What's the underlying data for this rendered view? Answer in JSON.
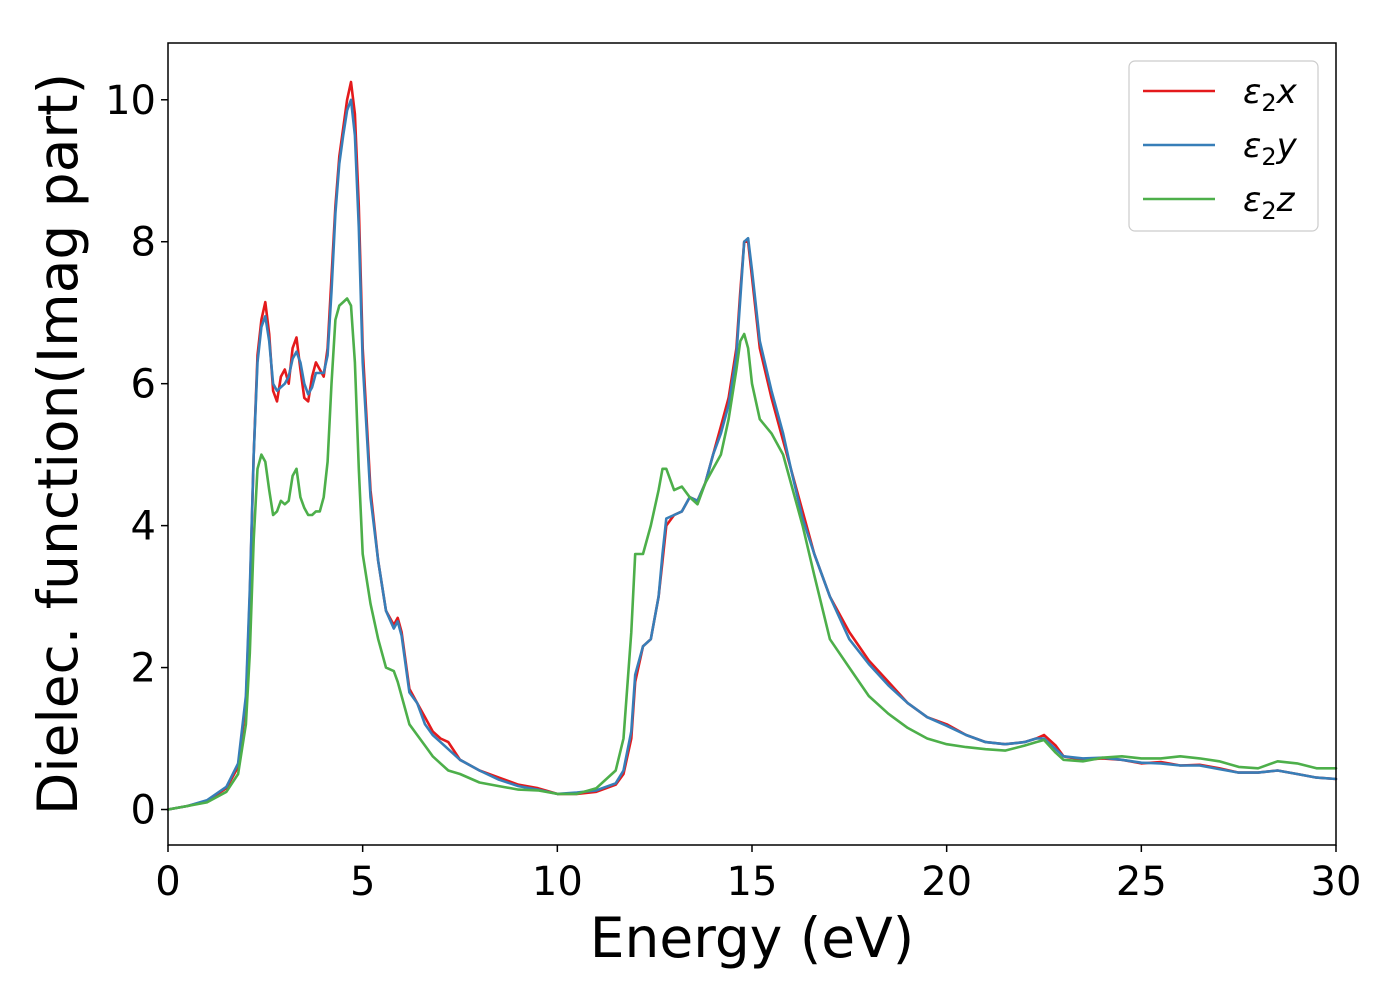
{
  "chart_data": {
    "type": "line",
    "xlabel": "Energy (eV)",
    "ylabel": "Dielec. function(Imag part)",
    "xlim": [
      0,
      30
    ],
    "ylim": [
      -0.5,
      10.8
    ],
    "xticks": [
      0,
      5,
      10,
      15,
      20,
      25,
      30
    ],
    "yticks": [
      0,
      2,
      4,
      6,
      8,
      10
    ],
    "grid": false,
    "legend_position": "top-right",
    "series": [
      {
        "name": "ε2x",
        "legend": {
          "base": "ε",
          "sub": "2",
          "var": "x"
        },
        "color": "#e41a1c",
        "x": [
          0,
          0.5,
          1.0,
          1.5,
          1.8,
          2.0,
          2.1,
          2.2,
          2.3,
          2.4,
          2.5,
          2.6,
          2.7,
          2.8,
          2.9,
          3.0,
          3.1,
          3.2,
          3.3,
          3.4,
          3.5,
          3.6,
          3.7,
          3.8,
          3.9,
          4.0,
          4.1,
          4.2,
          4.3,
          4.4,
          4.5,
          4.6,
          4.7,
          4.8,
          4.9,
          5.0,
          5.2,
          5.4,
          5.6,
          5.8,
          5.9,
          6.0,
          6.2,
          6.4,
          6.6,
          6.8,
          7.0,
          7.2,
          7.5,
          8.0,
          8.5,
          9.0,
          9.5,
          10.0,
          10.5,
          11.0,
          11.5,
          11.7,
          11.9,
          12.0,
          12.2,
          12.4,
          12.6,
          12.7,
          12.8,
          13.0,
          13.2,
          13.4,
          13.6,
          13.8,
          14.0,
          14.2,
          14.4,
          14.6,
          14.7,
          14.8,
          14.9,
          15.0,
          15.2,
          15.5,
          15.8,
          16.0,
          16.3,
          16.6,
          17.0,
          17.5,
          18.0,
          18.5,
          19.0,
          19.5,
          20.0,
          20.5,
          21.0,
          21.5,
          22.0,
          22.3,
          22.5,
          22.8,
          23.0,
          23.5,
          24.0,
          24.5,
          25.0,
          25.5,
          26.0,
          26.5,
          27.0,
          27.5,
          28.0,
          28.5,
          29.0,
          29.5,
          30.0
        ],
        "y": [
          0.0,
          0.05,
          0.12,
          0.3,
          0.6,
          1.5,
          3.0,
          5.0,
          6.4,
          6.9,
          7.15,
          6.7,
          5.9,
          5.75,
          6.1,
          6.2,
          6.0,
          6.5,
          6.65,
          6.2,
          5.8,
          5.75,
          6.1,
          6.3,
          6.2,
          6.1,
          6.5,
          7.5,
          8.5,
          9.2,
          9.6,
          10.0,
          10.25,
          9.8,
          8.5,
          6.5,
          4.5,
          3.5,
          2.8,
          2.6,
          2.7,
          2.5,
          1.7,
          1.5,
          1.3,
          1.1,
          1.0,
          0.95,
          0.7,
          0.55,
          0.45,
          0.35,
          0.3,
          0.22,
          0.22,
          0.25,
          0.35,
          0.5,
          1.0,
          1.8,
          2.3,
          2.4,
          3.0,
          3.5,
          4.0,
          4.15,
          4.2,
          4.4,
          4.35,
          4.6,
          5.0,
          5.4,
          5.8,
          6.5,
          7.3,
          8.0,
          8.0,
          7.5,
          6.5,
          5.8,
          5.2,
          4.8,
          4.2,
          3.6,
          3.0,
          2.5,
          2.1,
          1.8,
          1.5,
          1.3,
          1.2,
          1.05,
          0.95,
          0.92,
          0.95,
          1.0,
          1.05,
          0.9,
          0.75,
          0.7,
          0.72,
          0.7,
          0.65,
          0.67,
          0.62,
          0.63,
          0.58,
          0.52,
          0.52,
          0.55,
          0.5,
          0.45,
          0.43
        ]
      },
      {
        "name": "ε2y",
        "legend": {
          "base": "ε",
          "sub": "2",
          "var": "y"
        },
        "color": "#377eb8",
        "x": [
          0,
          0.5,
          1.0,
          1.5,
          1.8,
          2.0,
          2.1,
          2.2,
          2.3,
          2.4,
          2.5,
          2.6,
          2.7,
          2.8,
          2.9,
          3.0,
          3.1,
          3.2,
          3.3,
          3.4,
          3.5,
          3.6,
          3.7,
          3.8,
          3.9,
          4.0,
          4.1,
          4.2,
          4.3,
          4.4,
          4.5,
          4.6,
          4.7,
          4.8,
          4.9,
          5.0,
          5.2,
          5.4,
          5.6,
          5.8,
          5.9,
          6.0,
          6.2,
          6.4,
          6.6,
          6.8,
          7.0,
          7.2,
          7.5,
          8.0,
          8.5,
          9.0,
          9.5,
          10.0,
          10.5,
          11.0,
          11.5,
          11.7,
          11.9,
          12.0,
          12.2,
          12.4,
          12.6,
          12.7,
          12.8,
          13.0,
          13.2,
          13.4,
          13.6,
          13.8,
          14.0,
          14.2,
          14.4,
          14.6,
          14.7,
          14.8,
          14.9,
          15.0,
          15.2,
          15.5,
          15.8,
          16.0,
          16.3,
          16.6,
          17.0,
          17.5,
          18.0,
          18.5,
          19.0,
          19.5,
          20.0,
          20.5,
          21.0,
          21.5,
          22.0,
          22.3,
          22.5,
          22.8,
          23.0,
          23.5,
          24.0,
          24.5,
          25.0,
          25.5,
          26.0,
          26.5,
          27.0,
          27.5,
          28.0,
          28.5,
          29.0,
          29.5,
          30.0
        ],
        "y": [
          0.0,
          0.05,
          0.13,
          0.32,
          0.65,
          1.6,
          3.1,
          5.0,
          6.3,
          6.8,
          6.95,
          6.6,
          6.0,
          5.9,
          5.95,
          6.0,
          6.1,
          6.35,
          6.45,
          6.3,
          6.0,
          5.85,
          5.95,
          6.15,
          6.15,
          6.15,
          6.4,
          7.3,
          8.4,
          9.1,
          9.5,
          9.85,
          10.0,
          9.5,
          8.2,
          6.3,
          4.4,
          3.5,
          2.8,
          2.55,
          2.65,
          2.45,
          1.65,
          1.5,
          1.2,
          1.05,
          0.95,
          0.85,
          0.7,
          0.55,
          0.42,
          0.33,
          0.28,
          0.22,
          0.24,
          0.27,
          0.37,
          0.55,
          1.1,
          1.9,
          2.3,
          2.4,
          3.0,
          3.6,
          4.1,
          4.15,
          4.2,
          4.4,
          4.35,
          4.6,
          5.0,
          5.3,
          5.7,
          6.4,
          7.2,
          8.0,
          8.05,
          7.6,
          6.6,
          5.9,
          5.3,
          4.8,
          4.1,
          3.6,
          3.0,
          2.4,
          2.05,
          1.75,
          1.5,
          1.3,
          1.18,
          1.05,
          0.95,
          0.92,
          0.95,
          1.0,
          1.0,
          0.85,
          0.75,
          0.72,
          0.73,
          0.7,
          0.66,
          0.65,
          0.62,
          0.62,
          0.57,
          0.52,
          0.52,
          0.55,
          0.5,
          0.45,
          0.43
        ]
      },
      {
        "name": "ε2z",
        "legend": {
          "base": "ε",
          "sub": "2",
          "var": "z"
        },
        "color": "#4daf4a",
        "x": [
          0,
          0.5,
          1.0,
          1.5,
          1.8,
          2.0,
          2.1,
          2.2,
          2.3,
          2.4,
          2.5,
          2.6,
          2.7,
          2.8,
          2.9,
          3.0,
          3.1,
          3.2,
          3.3,
          3.4,
          3.5,
          3.6,
          3.7,
          3.8,
          3.9,
          4.0,
          4.1,
          4.2,
          4.3,
          4.4,
          4.5,
          4.6,
          4.7,
          4.8,
          4.9,
          5.0,
          5.2,
          5.4,
          5.6,
          5.8,
          5.9,
          6.0,
          6.2,
          6.4,
          6.6,
          6.8,
          7.0,
          7.2,
          7.5,
          8.0,
          8.5,
          9.0,
          9.5,
          10.0,
          10.5,
          11.0,
          11.5,
          11.7,
          11.9,
          12.0,
          12.2,
          12.4,
          12.6,
          12.7,
          12.8,
          13.0,
          13.2,
          13.4,
          13.6,
          13.8,
          14.0,
          14.2,
          14.4,
          14.6,
          14.7,
          14.8,
          14.9,
          15.0,
          15.2,
          15.5,
          15.8,
          16.0,
          16.3,
          16.6,
          17.0,
          17.5,
          18.0,
          18.5,
          19.0,
          19.5,
          20.0,
          20.5,
          21.0,
          21.5,
          22.0,
          22.3,
          22.5,
          22.8,
          23.0,
          23.5,
          24.0,
          24.5,
          25.0,
          25.5,
          26.0,
          26.5,
          27.0,
          27.5,
          28.0,
          28.5,
          29.0,
          29.5,
          30.0
        ],
        "y": [
          0.0,
          0.05,
          0.1,
          0.25,
          0.5,
          1.2,
          2.2,
          3.8,
          4.8,
          5.0,
          4.9,
          4.5,
          4.15,
          4.2,
          4.35,
          4.3,
          4.35,
          4.7,
          4.8,
          4.4,
          4.25,
          4.15,
          4.15,
          4.2,
          4.2,
          4.4,
          4.9,
          6.0,
          6.9,
          7.1,
          7.15,
          7.2,
          7.1,
          6.3,
          4.8,
          3.6,
          2.9,
          2.4,
          2.0,
          1.95,
          1.8,
          1.6,
          1.2,
          1.05,
          0.9,
          0.75,
          0.65,
          0.55,
          0.5,
          0.38,
          0.33,
          0.28,
          0.27,
          0.22,
          0.22,
          0.3,
          0.55,
          1.0,
          2.5,
          3.6,
          3.6,
          4.0,
          4.5,
          4.8,
          4.8,
          4.5,
          4.55,
          4.4,
          4.3,
          4.6,
          4.8,
          5.0,
          5.5,
          6.2,
          6.6,
          6.7,
          6.5,
          6.0,
          5.5,
          5.3,
          5.0,
          4.6,
          4.0,
          3.3,
          2.4,
          2.0,
          1.6,
          1.35,
          1.15,
          1.0,
          0.92,
          0.88,
          0.85,
          0.83,
          0.9,
          0.95,
          0.98,
          0.8,
          0.7,
          0.68,
          0.73,
          0.75,
          0.72,
          0.72,
          0.75,
          0.72,
          0.68,
          0.6,
          0.58,
          0.68,
          0.65,
          0.58,
          0.58
        ]
      }
    ]
  }
}
